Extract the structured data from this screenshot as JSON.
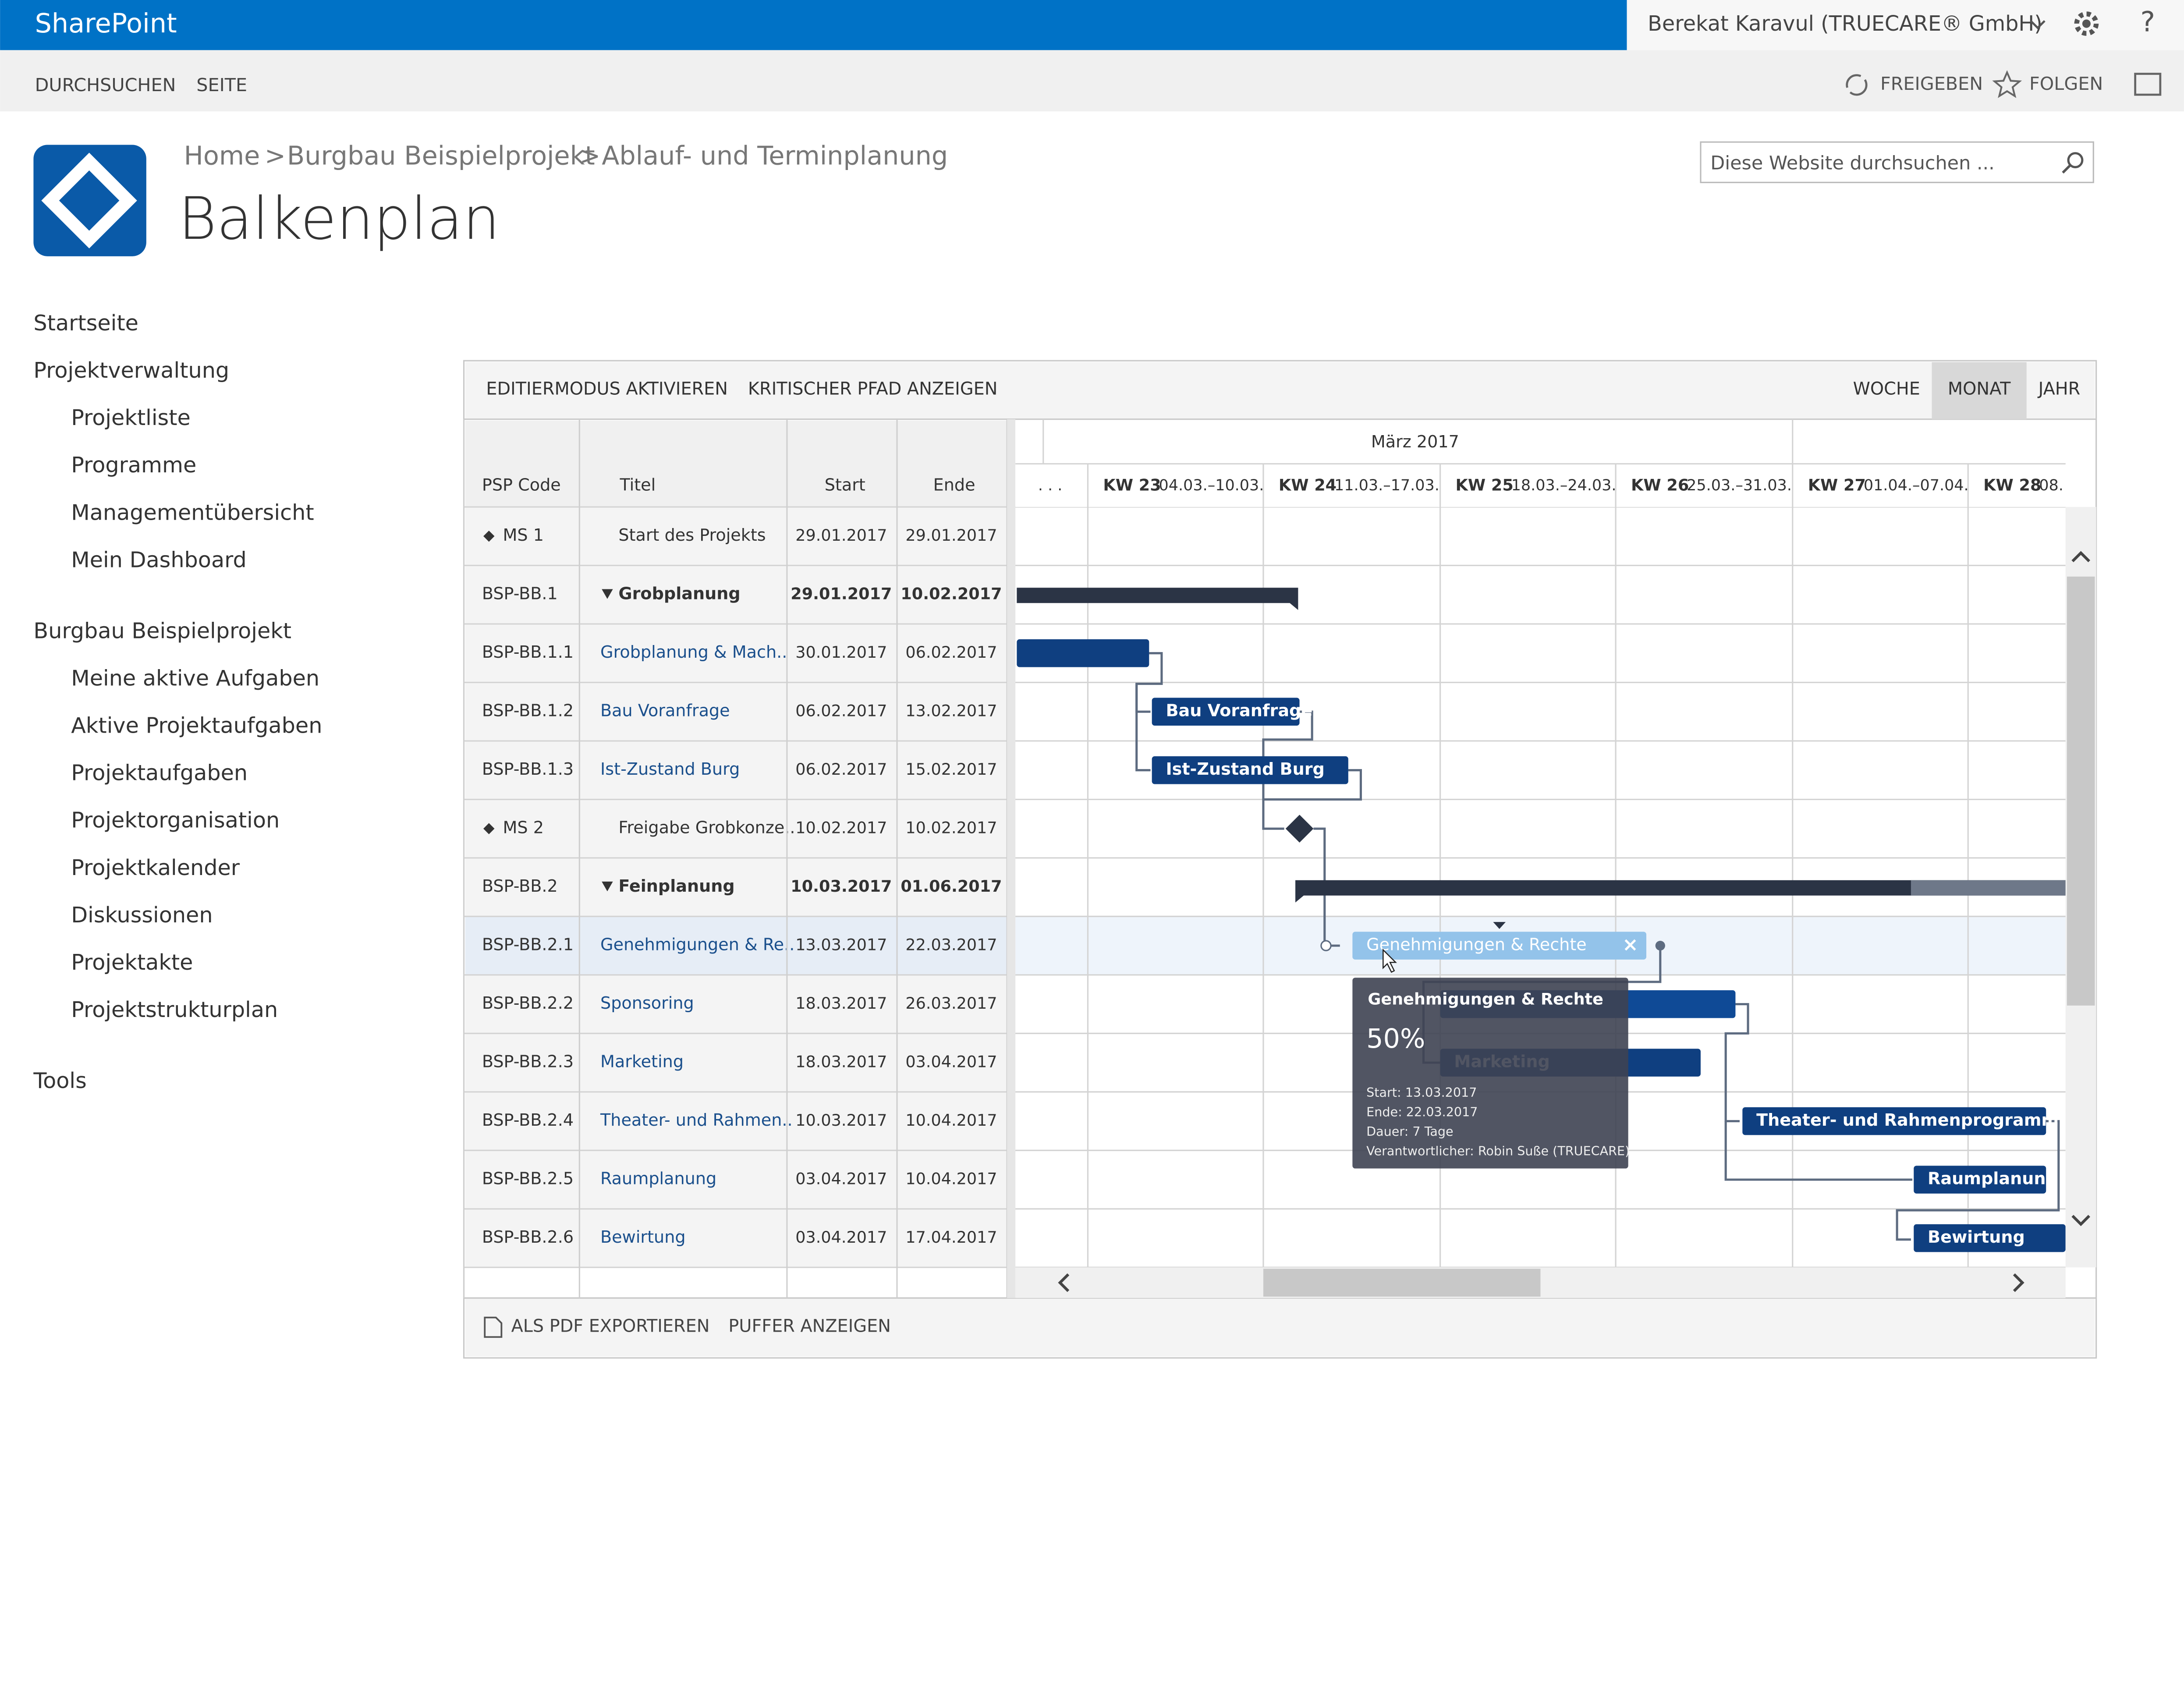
{
  "header": {
    "brand": "SharePoint",
    "user": "Berekat Karavul (TRUECARE® GmbH)",
    "help": "?"
  },
  "ribbon": {
    "tabs": [
      "DURCHSUCHEN",
      "SEITE"
    ],
    "actions": [
      "FREIGEBEN",
      "FOLGEN"
    ]
  },
  "breadcrumb": {
    "items": [
      "Home",
      "Burgbau Beispielprojekt",
      "Ablauf- und Terminplanung"
    ],
    "separator": ">"
  },
  "page_title": "Balkenplan",
  "search_placeholder": "Diese Website durchsuchen ...",
  "nav": [
    {
      "label": "Startseite",
      "level": 0
    },
    {
      "label": "Projektverwaltung",
      "level": 0
    },
    {
      "label": "Projektliste",
      "level": 1
    },
    {
      "label": "Programme",
      "level": 1
    },
    {
      "label": "Managementübersicht",
      "level": 1
    },
    {
      "label": "Mein Dashboard",
      "level": 1
    },
    {
      "label": "Burgbau Beispielprojekt",
      "level": 0
    },
    {
      "label": "Meine aktive Aufgaben",
      "level": 1
    },
    {
      "label": "Aktive Projektaufgaben",
      "level": 1
    },
    {
      "label": "Projektaufgaben",
      "level": 1
    },
    {
      "label": "Projektorganisation",
      "level": 1
    },
    {
      "label": "Projektkalender",
      "level": 1
    },
    {
      "label": "Diskussionen",
      "level": 1
    },
    {
      "label": "Projektakte",
      "level": 1
    },
    {
      "label": "Projektstrukturplan",
      "level": 1
    },
    {
      "label": "Tools",
      "level": 0
    }
  ],
  "toolbar": {
    "actions": [
      "EDITIERMODUS AKTIVIEREN",
      "KRITISCHER PFAD ANZEIGEN"
    ],
    "views": [
      {
        "label": "WOCHE",
        "active": false
      },
      {
        "label": "MONAT",
        "active": true
      },
      {
        "label": "JAHR",
        "active": false
      }
    ]
  },
  "table": {
    "columns": [
      "PSP Code",
      "Titel",
      "Start",
      "Ende"
    ],
    "selected_row": 7,
    "rows": [
      {
        "code": "MS 1",
        "title": "Start des Projekts",
        "start": "29.01.2017",
        "end": "29.01.2017",
        "kind": "milestone"
      },
      {
        "code": "BSP-BB.1",
        "title": "Grobplanung",
        "start": "29.01.2017",
        "end": "10.02.2017",
        "kind": "summary"
      },
      {
        "code": "BSP-BB.1.1",
        "title": "Grobplanung & Mach..",
        "start": "30.01.2017",
        "end": "06.02.2017",
        "kind": "task"
      },
      {
        "code": "BSP-BB.1.2",
        "title": "Bau Voranfrage",
        "start": "06.02.2017",
        "end": "13.02.2017",
        "kind": "task"
      },
      {
        "code": "BSP-BB.1.3",
        "title": "Ist-Zustand Burg",
        "start": "06.02.2017",
        "end": "15.02.2017",
        "kind": "task"
      },
      {
        "code": "MS 2",
        "title": "Freigabe Grobkonze..",
        "start": "10.02.2017",
        "end": "10.02.2017",
        "kind": "milestone"
      },
      {
        "code": "BSP-BB.2",
        "title": "Feinplanung",
        "start": "10.03.2017",
        "end": "01.06.2017",
        "kind": "summary"
      },
      {
        "code": "BSP-BB.2.1",
        "title": "Genehmigungen & Re..",
        "start": "13.03.2017",
        "end": "22.03.2017",
        "kind": "task"
      },
      {
        "code": "BSP-BB.2.2",
        "title": "Sponsoring",
        "start": "18.03.2017",
        "end": "26.03.2017",
        "kind": "task"
      },
      {
        "code": "BSP-BB.2.3",
        "title": "Marketing",
        "start": "18.03.2017",
        "end": "03.04.2017",
        "kind": "task"
      },
      {
        "code": "BSP-BB.2.4",
        "title": "Theater- und Rahmen..",
        "start": "10.03.2017",
        "end": "10.04.2017",
        "kind": "task"
      },
      {
        "code": "BSP-BB.2.5",
        "title": "Raumplanung",
        "start": "03.04.2017",
        "end": "10.04.2017",
        "kind": "task"
      },
      {
        "code": "BSP-BB.2.6",
        "title": "Bewirtung",
        "start": "03.04.2017",
        "end": "17.04.2017",
        "kind": "task"
      }
    ]
  },
  "timeline": {
    "month": "März 2017",
    "lead": ". . .",
    "weeks": [
      {
        "kw": "KW 23",
        "range": "04.03.–10.03."
      },
      {
        "kw": "KW 24",
        "range": "11.03.–17.03."
      },
      {
        "kw": "KW 25",
        "range": "18.03.–24.03."
      },
      {
        "kw": "KW 26",
        "range": "25.03.–31.03."
      },
      {
        "kw": "KW 27",
        "range": "01.04.–07.04."
      },
      {
        "kw": "KW 28",
        "range": "08."
      }
    ]
  },
  "gantt_labels": [
    "Bau Voranfrage",
    "Ist-Zustand Burg",
    "Genehmigungen & Rechte",
    "Marketing",
    "Theater- und Rahmenprogramm",
    "Raumplanung",
    "Bewirtung"
  ],
  "tooltip": {
    "title": "Genehmigungen & Rechte",
    "percent": "50%",
    "lines": [
      "Start: 13.03.2017",
      "Ende: 22.03.2017",
      "Dauer: 7 Tage",
      "Verantwortlicher: Robin Suße (TRUECARE)"
    ]
  },
  "footer": [
    "ALS PDF EXPORTIEREN",
    "PUFFER ANZEIGEN"
  ]
}
